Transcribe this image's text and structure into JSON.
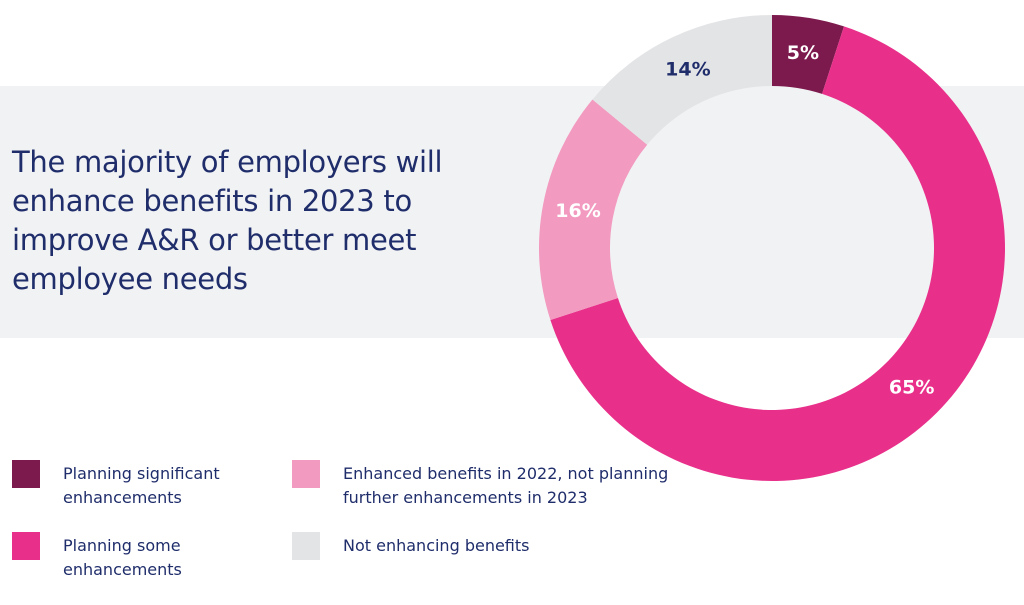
{
  "title": "The majority of employers will enhance benefits in 2023 to improve A&R or better meet employee needs",
  "chart_data": {
    "type": "pie",
    "donut": true,
    "categories": [
      "Planning significant enhancements",
      "Planning some enhancements",
      "Enhanced benefits in 2022, not planning further enhancements in 2023",
      "Not enhancing benefits"
    ],
    "values": [
      5,
      65,
      16,
      14
    ],
    "labels": [
      "5%",
      "65%",
      "16%",
      "14%"
    ],
    "colors": [
      "#7d1a4d",
      "#e8308a",
      "#f29abf",
      "#e3e4e6"
    ],
    "label_colors": [
      "#ffffff",
      "#ffffff",
      "#ffffff",
      "#1f2d6b"
    ],
    "legend_position": "bottom-left"
  },
  "legend": [
    {
      "label": "Planning significant enhancements",
      "color": "#7d1a4d"
    },
    {
      "label": "Planning some enhancements",
      "color": "#e8308a"
    },
    {
      "label": "Enhanced benefits in 2022, not planning further enhancements in 2023",
      "color": "#f29abf"
    },
    {
      "label": "Not enhancing benefits",
      "color": "#e3e4e6"
    }
  ]
}
